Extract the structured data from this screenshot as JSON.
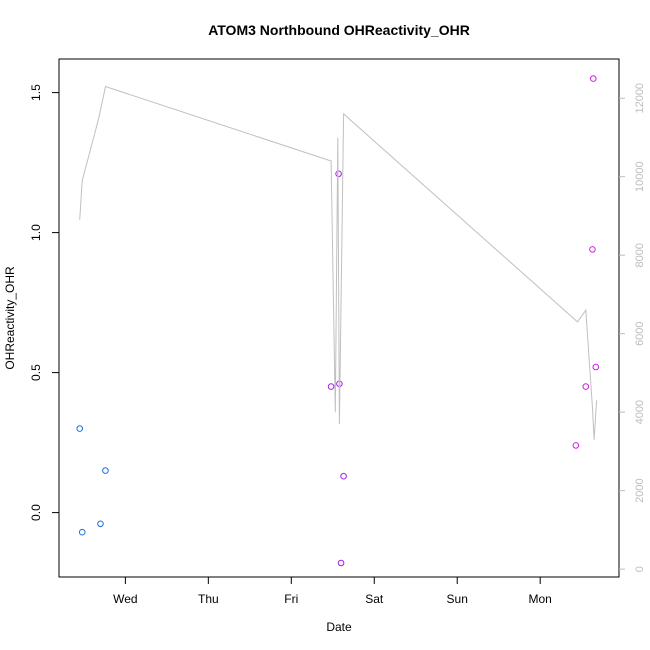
{
  "chart_data": {
    "type": "scatter",
    "title": "ATOM3 Northbound OHReactivity_OHR",
    "xlabel": "Date",
    "ylabel": "OHReactivity_OHR",
    "x_ticks": [
      "Wed",
      "Thu",
      "Fri",
      "Sat",
      "Sun",
      "Mon"
    ],
    "xlim": [
      -0.8,
      5.95
    ],
    "ylim": [
      -0.23,
      1.62
    ],
    "y_ticks": [
      0.0,
      0.5,
      1.0,
      1.5
    ],
    "y2lim": [
      -200,
      13000
    ],
    "y2_ticks": [
      0,
      2000,
      4000,
      6000,
      8000,
      10000,
      12000
    ],
    "y2_color": "#bdbdbd",
    "series": [
      {
        "type": "scatter",
        "color": "#1f6fe0",
        "points": [
          {
            "x": -0.55,
            "y": 0.3
          },
          {
            "x": -0.52,
            "y": -0.07
          },
          {
            "x": -0.3,
            "y": -0.04
          },
          {
            "x": -0.24,
            "y": 0.15
          }
        ]
      },
      {
        "type": "scatter",
        "color": "#a020f0",
        "points": [
          {
            "x": 2.48,
            "y": 0.45
          },
          {
            "x": 2.57,
            "y": 1.21
          },
          {
            "x": 2.58,
            "y": 0.46
          },
          {
            "x": 2.6,
            "y": -0.18
          },
          {
            "x": 2.63,
            "y": 0.13
          }
        ]
      },
      {
        "type": "scatter",
        "color": "#d21ee6",
        "points": [
          {
            "x": 5.43,
            "y": 0.24
          },
          {
            "x": 5.55,
            "y": 0.45
          },
          {
            "x": 5.63,
            "y": 0.94
          },
          {
            "x": 5.64,
            "y": 1.55
          },
          {
            "x": 5.67,
            "y": 0.52
          }
        ]
      },
      {
        "type": "line",
        "axis": "right",
        "color": "#c0c0c0",
        "points": [
          {
            "x": -0.55,
            "y": 8900
          },
          {
            "x": -0.52,
            "y": 9900
          },
          {
            "x": -0.32,
            "y": 11500
          },
          {
            "x": -0.24,
            "y": 12300
          },
          {
            "x": 2.48,
            "y": 10400
          },
          {
            "x": 2.53,
            "y": 4000
          },
          {
            "x": 2.56,
            "y": 11000
          },
          {
            "x": 2.58,
            "y": 3700
          },
          {
            "x": 2.63,
            "y": 11600
          },
          {
            "x": 5.45,
            "y": 6300
          },
          {
            "x": 5.55,
            "y": 6600
          },
          {
            "x": 5.63,
            "y": 4100
          },
          {
            "x": 5.65,
            "y": 3300
          },
          {
            "x": 5.68,
            "y": 4300
          }
        ]
      }
    ]
  }
}
